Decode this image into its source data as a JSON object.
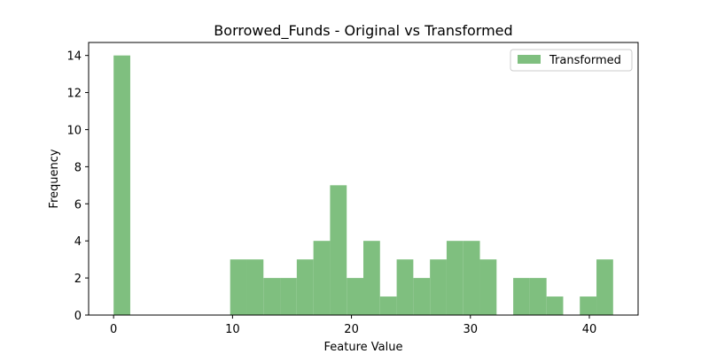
{
  "chart_data": {
    "type": "bar",
    "title": "Borrowed_Funds - Original vs Transformed",
    "xlabel": "Feature Value",
    "ylabel": "Frequency",
    "xlim": [
      -2.1,
      44.1
    ],
    "ylim": [
      0,
      14.7
    ],
    "xticks": [
      0,
      10,
      20,
      30,
      40
    ],
    "yticks": [
      0,
      2,
      4,
      6,
      8,
      10,
      12,
      14
    ],
    "legend_position": "top-right",
    "grid": false,
    "bin_edges": [
      0,
      1.4,
      2.8,
      4.2,
      5.6,
      7.0,
      8.4,
      9.8,
      11.2,
      12.6,
      14.0,
      15.4,
      16.8,
      18.2,
      19.6,
      21.0,
      22.4,
      23.8,
      25.2,
      26.6,
      28.0,
      29.4,
      30.8,
      32.2,
      33.6,
      35.0,
      36.4,
      37.8,
      39.2,
      40.6,
      42.0
    ],
    "series": [
      {
        "name": "Transformed",
        "color": "#7fbf7f",
        "values": [
          14,
          0,
          0,
          0,
          0,
          0,
          0,
          3,
          3,
          2,
          2,
          3,
          4,
          7,
          2,
          4,
          1,
          3,
          2,
          3,
          4,
          4,
          3,
          0,
          2,
          2,
          1,
          0,
          1,
          3
        ]
      }
    ]
  }
}
